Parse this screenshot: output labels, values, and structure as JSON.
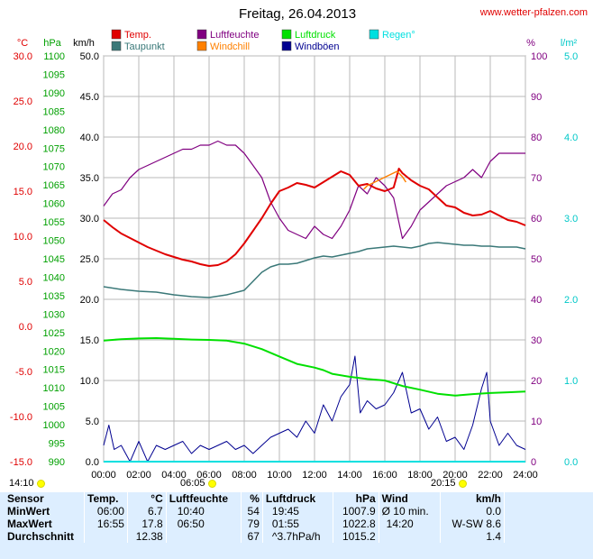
{
  "title": "Freitag, 26.04.2013",
  "website": "www.wetter-pfalzen.com",
  "colors": {
    "temp": "#e00000",
    "taupunkt": "#3a7878",
    "luftfeuchte": "#800080",
    "windchill": "#ff8000",
    "luftdruck": "#00e000",
    "windboeen": "#000090",
    "regen": "#00e0e0",
    "grid": "#b8b8b8"
  },
  "legend": [
    {
      "label": "Temp.",
      "color": "#e00000"
    },
    {
      "label": "Luftfeuchte",
      "color": "#800080"
    },
    {
      "label": "Luftdruck",
      "color": "#00e000"
    },
    {
      "label": "Regen°",
      "color": "#00e0e0"
    },
    {
      "label": "Taupunkt",
      "color": "#3a7878"
    },
    {
      "label": "Windchill",
      "color": "#ff8000"
    },
    {
      "label": "Windböen",
      "color": "#000090"
    }
  ],
  "axes": {
    "temp": {
      "unit": "°C",
      "color": "#e00000",
      "range": [
        -15,
        30
      ],
      "ticks": [
        "30.0",
        "25.0",
        "20.0",
        "15.0",
        "10.0",
        "5.0",
        "0.0",
        "-5.0",
        "-10.0",
        "-15.0"
      ]
    },
    "pressure": {
      "unit": "hPa",
      "color": "#00a000",
      "range": [
        990,
        1100
      ],
      "ticks": [
        "1100",
        "1095",
        "1090",
        "1085",
        "1080",
        "1075",
        "1070",
        "1065",
        "1060",
        "1055",
        "1050",
        "1045",
        "1040",
        "1035",
        "1030",
        "1025",
        "1020",
        "1015",
        "1010",
        "1005",
        "1000",
        "995",
        "990"
      ]
    },
    "wind": {
      "unit": "km/h",
      "color": "#000000",
      "range": [
        0,
        50
      ],
      "ticks": [
        "50.0",
        "45.0",
        "40.0",
        "35.0",
        "30.0",
        "25.0",
        "20.0",
        "15.0",
        "10.0",
        "5.0",
        "0.0"
      ]
    },
    "humidity": {
      "unit": "%",
      "color": "#800080",
      "range": [
        0,
        100
      ],
      "ticks": [
        "100",
        "90",
        "80",
        "70",
        "60",
        "50",
        "40",
        "30",
        "20",
        "10",
        "0"
      ]
    },
    "rain": {
      "unit": "l/m²",
      "color": "#00c8c8",
      "range": [
        0,
        5
      ],
      "ticks": [
        "5.0",
        "4.0",
        "3.0",
        "2.0",
        "1.0",
        "0.0"
      ]
    },
    "time": {
      "range_hours": [
        0,
        24
      ],
      "ticks": [
        "00:00",
        "02:00",
        "04:00",
        "06:00",
        "08:00",
        "10:00",
        "12:00",
        "14:00",
        "16:00",
        "18:00",
        "20:00",
        "22:00",
        "24:00"
      ]
    }
  },
  "sun": {
    "moonset": "14:10",
    "sunrise": "06:05",
    "sunset": "20:15"
  },
  "chart_data": {
    "type": "line",
    "title": "Freitag, 26.04.2013",
    "x_unit": "hours",
    "x_range": [
      0,
      24
    ],
    "grid": true,
    "legend_placement": "top",
    "series": [
      {
        "name": "Temp.",
        "axis": "temp",
        "points": [
          [
            0,
            11.8
          ],
          [
            0.5,
            11.0
          ],
          [
            1,
            10.3
          ],
          [
            1.5,
            9.8
          ],
          [
            2,
            9.3
          ],
          [
            2.5,
            8.8
          ],
          [
            3,
            8.4
          ],
          [
            3.5,
            8.0
          ],
          [
            4,
            7.7
          ],
          [
            4.5,
            7.4
          ],
          [
            5,
            7.2
          ],
          [
            5.5,
            6.9
          ],
          [
            6,
            6.7
          ],
          [
            6.5,
            6.8
          ],
          [
            7,
            7.2
          ],
          [
            7.5,
            8.0
          ],
          [
            8,
            9.2
          ],
          [
            8.5,
            10.6
          ],
          [
            9,
            12.0
          ],
          [
            9.5,
            13.6
          ],
          [
            10,
            15.0
          ],
          [
            10.5,
            15.4
          ],
          [
            11,
            15.9
          ],
          [
            11.5,
            15.7
          ],
          [
            12,
            15.4
          ],
          [
            12.5,
            16.0
          ],
          [
            13,
            16.6
          ],
          [
            13.5,
            17.2
          ],
          [
            14,
            16.8
          ],
          [
            14.5,
            15.6
          ],
          [
            15,
            15.8
          ],
          [
            15.5,
            15.3
          ],
          [
            16,
            15.0
          ],
          [
            16.5,
            15.4
          ],
          [
            16.8,
            17.5
          ],
          [
            17,
            17.0
          ],
          [
            17.5,
            16.2
          ],
          [
            18,
            15.6
          ],
          [
            18.5,
            15.2
          ],
          [
            19,
            14.3
          ],
          [
            19.5,
            13.4
          ],
          [
            20,
            13.2
          ],
          [
            20.5,
            12.6
          ],
          [
            21,
            12.3
          ],
          [
            21.5,
            12.4
          ],
          [
            22,
            12.8
          ],
          [
            22.5,
            12.3
          ],
          [
            23,
            11.8
          ],
          [
            23.5,
            11.6
          ],
          [
            24,
            11.2
          ]
        ]
      },
      {
        "name": "Taupunkt",
        "axis": "temp",
        "points": [
          [
            0,
            4.4
          ],
          [
            1,
            4.1
          ],
          [
            2,
            3.9
          ],
          [
            3,
            3.8
          ],
          [
            4,
            3.5
          ],
          [
            5,
            3.3
          ],
          [
            6,
            3.2
          ],
          [
            7,
            3.5
          ],
          [
            8,
            4.0
          ],
          [
            8.5,
            5.0
          ],
          [
            9,
            6.0
          ],
          [
            9.5,
            6.6
          ],
          [
            10,
            6.9
          ],
          [
            10.5,
            6.9
          ],
          [
            11,
            7.0
          ],
          [
            11.5,
            7.3
          ],
          [
            12,
            7.6
          ],
          [
            12.5,
            7.8
          ],
          [
            13,
            7.7
          ],
          [
            13.5,
            7.9
          ],
          [
            14,
            8.1
          ],
          [
            14.5,
            8.3
          ],
          [
            15,
            8.6
          ],
          [
            15.5,
            8.7
          ],
          [
            16,
            8.8
          ],
          [
            16.5,
            8.9
          ],
          [
            17,
            8.8
          ],
          [
            17.5,
            8.7
          ],
          [
            18,
            8.9
          ],
          [
            18.5,
            9.2
          ],
          [
            19,
            9.3
          ],
          [
            19.5,
            9.2
          ],
          [
            20,
            9.1
          ],
          [
            20.5,
            9.0
          ],
          [
            21,
            9.0
          ],
          [
            21.5,
            8.9
          ],
          [
            22,
            8.9
          ],
          [
            22.5,
            8.8
          ],
          [
            23,
            8.8
          ],
          [
            23.5,
            8.8
          ],
          [
            24,
            8.6
          ]
        ]
      },
      {
        "name": "Luftfeuchte",
        "axis": "humidity",
        "points": [
          [
            0,
            63
          ],
          [
            0.5,
            66
          ],
          [
            1,
            67
          ],
          [
            1.5,
            70
          ],
          [
            2,
            72
          ],
          [
            2.5,
            73
          ],
          [
            3,
            74
          ],
          [
            3.5,
            75
          ],
          [
            4,
            76
          ],
          [
            4.5,
            77
          ],
          [
            5,
            77
          ],
          [
            5.5,
            78
          ],
          [
            6,
            78
          ],
          [
            6.5,
            79
          ],
          [
            7,
            78
          ],
          [
            7.5,
            78
          ],
          [
            8,
            76
          ],
          [
            8.5,
            73
          ],
          [
            9,
            70
          ],
          [
            9.5,
            64
          ],
          [
            10,
            60
          ],
          [
            10.5,
            57
          ],
          [
            11,
            56
          ],
          [
            11.5,
            55
          ],
          [
            12,
            58
          ],
          [
            12.5,
            56
          ],
          [
            13,
            55
          ],
          [
            13.5,
            58
          ],
          [
            14,
            62
          ],
          [
            14.5,
            68
          ],
          [
            15,
            66
          ],
          [
            15.5,
            70
          ],
          [
            16,
            68
          ],
          [
            16.5,
            65
          ],
          [
            17,
            55
          ],
          [
            17.5,
            58
          ],
          [
            18,
            62
          ],
          [
            18.5,
            64
          ],
          [
            19,
            66
          ],
          [
            19.5,
            68
          ],
          [
            20,
            69
          ],
          [
            20.5,
            70
          ],
          [
            21,
            72
          ],
          [
            21.5,
            70
          ],
          [
            22,
            74
          ],
          [
            22.5,
            76
          ],
          [
            23,
            76
          ],
          [
            23.5,
            76
          ],
          [
            24,
            76
          ]
        ]
      },
      {
        "name": "Windchill",
        "axis": "temp",
        "points": [
          [
            14.8,
            15.2
          ],
          [
            15,
            15.6
          ],
          [
            16.7,
            17.2
          ],
          [
            17,
            16.6
          ],
          [
            17.2,
            16.0
          ]
        ]
      },
      {
        "name": "Luftdruck",
        "axis": "pressure",
        "points": [
          [
            0,
            1022.8
          ],
          [
            1,
            1023.2
          ],
          [
            2,
            1023.4
          ],
          [
            3,
            1023.5
          ],
          [
            4,
            1023.3
          ],
          [
            5,
            1023.1
          ],
          [
            6,
            1023.0
          ],
          [
            7,
            1022.8
          ],
          [
            8,
            1022.0
          ],
          [
            9,
            1020.5
          ],
          [
            10,
            1018.5
          ],
          [
            11,
            1016.5
          ],
          [
            12,
            1015.5
          ],
          [
            12.5,
            1014.8
          ],
          [
            13,
            1013.8
          ],
          [
            14,
            1013.0
          ],
          [
            15,
            1012.4
          ],
          [
            16,
            1012.0
          ],
          [
            17,
            1010.5
          ],
          [
            18,
            1009.5
          ],
          [
            19,
            1008.4
          ],
          [
            20,
            1007.9
          ],
          [
            21,
            1008.3
          ],
          [
            22,
            1008.6
          ],
          [
            23,
            1008.8
          ],
          [
            24,
            1009.0
          ]
        ]
      },
      {
        "name": "Windböen",
        "axis": "wind",
        "points": [
          [
            0,
            2.0
          ],
          [
            0.3,
            4.5
          ],
          [
            0.6,
            1.5
          ],
          [
            1,
            2.0
          ],
          [
            1.5,
            0
          ],
          [
            2,
            2.5
          ],
          [
            2.5,
            0
          ],
          [
            3,
            2.0
          ],
          [
            3.5,
            1.5
          ],
          [
            4,
            2.0
          ],
          [
            4.5,
            2.5
          ],
          [
            5,
            1.0
          ],
          [
            5.5,
            2.0
          ],
          [
            6,
            1.5
          ],
          [
            6.5,
            2.0
          ],
          [
            7,
            2.5
          ],
          [
            7.5,
            1.5
          ],
          [
            8,
            2.0
          ],
          [
            8.5,
            1.0
          ],
          [
            9,
            2.0
          ],
          [
            9.5,
            3.0
          ],
          [
            10,
            3.5
          ],
          [
            10.5,
            4.0
          ],
          [
            11,
            3.0
          ],
          [
            11.5,
            5.0
          ],
          [
            12,
            3.5
          ],
          [
            12.5,
            7.0
          ],
          [
            13,
            5.0
          ],
          [
            13.5,
            8.0
          ],
          [
            14,
            9.5
          ],
          [
            14.3,
            13.0
          ],
          [
            14.6,
            6.0
          ],
          [
            15,
            7.5
          ],
          [
            15.5,
            6.5
          ],
          [
            16,
            7.0
          ],
          [
            16.5,
            8.5
          ],
          [
            17,
            11.0
          ],
          [
            17.5,
            6.0
          ],
          [
            18,
            6.5
          ],
          [
            18.5,
            4.0
          ],
          [
            19,
            5.5
          ],
          [
            19.5,
            2.5
          ],
          [
            20,
            3.0
          ],
          [
            20.5,
            1.5
          ],
          [
            21,
            4.5
          ],
          [
            21.5,
            9.0
          ],
          [
            21.8,
            11.0
          ],
          [
            22,
            5.0
          ],
          [
            22.5,
            2.0
          ],
          [
            23,
            3.5
          ],
          [
            23.5,
            2.0
          ],
          [
            24,
            1.5
          ]
        ]
      }
    ]
  },
  "stats": {
    "headers": [
      "Sensor",
      "Temp.",
      "°C",
      "Luftfeuchte",
      "%",
      "Luftdruck",
      "hPa",
      "Wind",
      "km/h"
    ],
    "rows": [
      {
        "label": "MinWert",
        "cells": [
          "06:00",
          "6.7",
          "10:40",
          "54",
          "19:45",
          "1007.9",
          "Ø 10 min.",
          "0.0"
        ]
      },
      {
        "label": "MaxWert",
        "cells": [
          "16:55",
          "17.8",
          "06:50",
          "79",
          "01:55",
          "1022.8",
          "14:20",
          "W-SW 8.6"
        ]
      },
      {
        "label": "Durchschnitt",
        "cells": [
          "",
          "12.38",
          "",
          "67",
          "^3.7hPa/h",
          "1015.2",
          "",
          "1.4"
        ]
      }
    ]
  }
}
